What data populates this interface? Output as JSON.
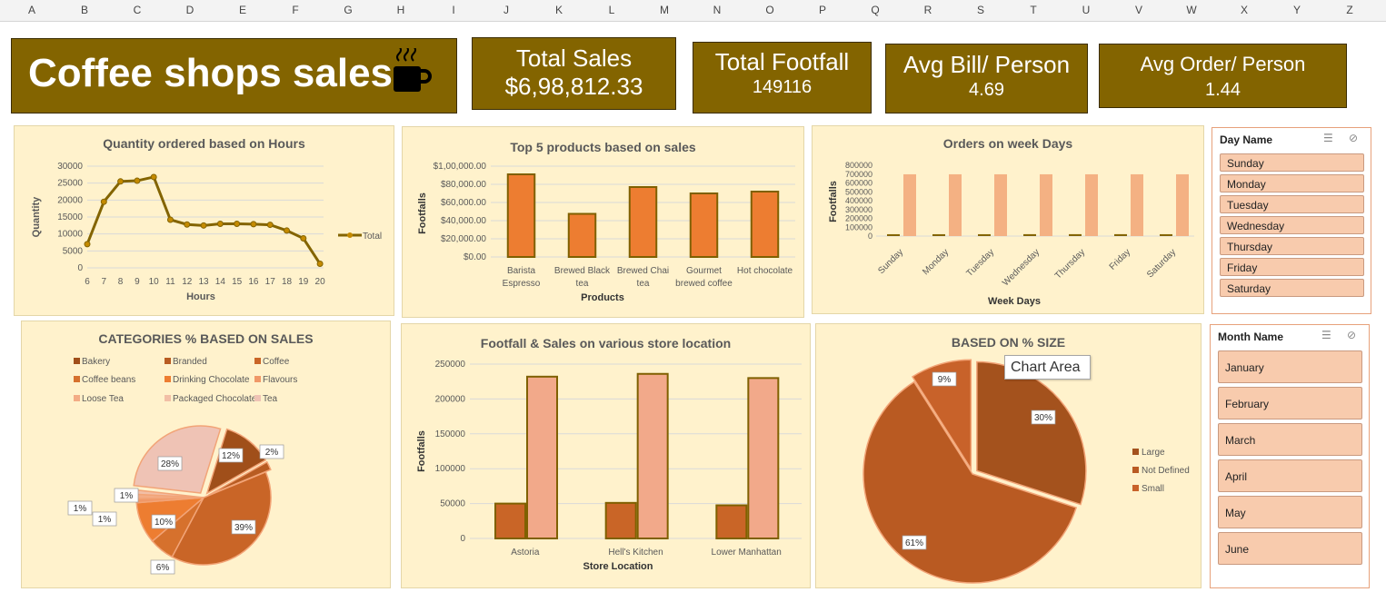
{
  "columns": [
    "A",
    "B",
    "C",
    "D",
    "E",
    "F",
    "G",
    "H",
    "I",
    "J",
    "K",
    "L",
    "M",
    "N",
    "O",
    "P",
    "Q",
    "R",
    "S",
    "T",
    "U",
    "V",
    "W",
    "X",
    "Y",
    "Z"
  ],
  "header": {
    "title": "Coffee shops sales",
    "icon": "coffee-cup-icon"
  },
  "kpis": [
    {
      "label": "Total Sales",
      "value": "$6,98,812.33"
    },
    {
      "label": "Total Footfall",
      "value": "149116"
    },
    {
      "label": "Avg Bill/ Person",
      "value": "4.69"
    },
    {
      "label": "Avg Order/ Person",
      "value": "1.44"
    }
  ],
  "tooltip": "Chart Area",
  "slicers": {
    "day": {
      "title": "Day Name",
      "items": [
        "Sunday",
        "Monday",
        "Tuesday",
        "Wednesday",
        "Thursday",
        "Friday",
        "Saturday"
      ]
    },
    "month": {
      "title": "Month Name",
      "items": [
        "January",
        "February",
        "March",
        "April",
        "May",
        "June"
      ]
    }
  },
  "chart_data": [
    {
      "type": "line",
      "title": "Quantity ordered based on Hours",
      "xlabel": "Hours",
      "ylabel": "Quantity",
      "x": [
        "6",
        "7",
        "8",
        "9",
        "10",
        "11",
        "12",
        "13",
        "14",
        "15",
        "16",
        "17",
        "18",
        "19",
        "20"
      ],
      "series": [
        {
          "name": "Total",
          "values": [
            7000,
            19500,
            25500,
            25700,
            26800,
            14200,
            12800,
            12500,
            13000,
            13000,
            12900,
            12700,
            11000,
            8700,
            1200
          ]
        }
      ],
      "yticks": [
        "0",
        "5000",
        "10000",
        "15000",
        "20000",
        "25000",
        "30000"
      ],
      "ylim": [
        0,
        30000
      ],
      "legend": "right",
      "color": "#836400"
    },
    {
      "type": "bar",
      "title": "Top 5 products based on sales",
      "xlabel": "Products",
      "ylabel": "Footfalls",
      "categories": [
        [
          "Barista",
          "Espresso"
        ],
        [
          "Brewed Black",
          "tea"
        ],
        [
          "Brewed Chai",
          "tea"
        ],
        [
          "Gourmet",
          "brewed coffee"
        ],
        [
          "Hot chocolate"
        ]
      ],
      "values": [
        91000,
        47500,
        77000,
        70000,
        72000
      ],
      "yticks": [
        "$0.00",
        "$20,000.00",
        "$40,000.00",
        "$60,000.00",
        "$80,000.00",
        "$1,00,000.00"
      ],
      "ylim": [
        0,
        100000
      ],
      "color": "#ed7d31"
    },
    {
      "type": "bar",
      "title": "Orders on week Days",
      "xlabel": "Week Days",
      "ylabel": "Footfalls",
      "categories": [
        "Sunday",
        "Monday",
        "Tuesday",
        "Wednesday",
        "Thursday",
        "Friday",
        "Saturday"
      ],
      "series": [
        {
          "values": [
            21000,
            21000,
            21000,
            21500,
            21500,
            21500,
            21000
          ],
          "color": "#836400"
        },
        {
          "values": [
            698000,
            698000,
            698000,
            698000,
            698000,
            698000,
            698000
          ],
          "color": "#f4b183"
        }
      ],
      "yticks": [
        "0",
        "100000",
        "200000",
        "300000",
        "400000",
        "500000",
        "600000",
        "700000",
        "800000"
      ],
      "ylim": [
        0,
        800000
      ]
    },
    {
      "type": "pie",
      "title": "CATEGORIES % BASED ON SALES",
      "legend": [
        "Bakery",
        "Branded",
        "Coffee",
        "Coffee beans",
        "Drinking Chocolate",
        "Flavours",
        "Loose Tea",
        "Packaged Chocolate",
        "Tea"
      ],
      "values": [
        12,
        2,
        39,
        6,
        10,
        1,
        1,
        1,
        28
      ],
      "labels": [
        "12%",
        "2%",
        "39%",
        "6%",
        "10%",
        "1%",
        "1%",
        "1%",
        "28%"
      ],
      "colors": [
        "#a04f1a",
        "#b85c22",
        "#c96527",
        "#d6712d",
        "#ed7d31",
        "#f09868",
        "#f3ac85",
        "#f2bfa6",
        "#efc3b5"
      ]
    },
    {
      "type": "bar",
      "title": "Footfall & Sales on various store location",
      "xlabel": "Store Location",
      "ylabel": "Footfalls",
      "categories": [
        "Astoria",
        "Hell's Kitchen",
        "Lower Manhattan"
      ],
      "series": [
        {
          "values": [
            50000,
            51000,
            47500
          ],
          "color": "#c96527"
        },
        {
          "values": [
            232000,
            236000,
            230000
          ],
          "color": "#f2a98a"
        }
      ],
      "yticks": [
        "0",
        "50000",
        "100000",
        "150000",
        "200000",
        "250000"
      ],
      "ylim": [
        0,
        250000
      ]
    },
    {
      "type": "pie",
      "title": "BASED ON % SIZE",
      "legend": [
        "Large",
        "Not Defined",
        "Small"
      ],
      "values": [
        30,
        61,
        9
      ],
      "labels": [
        "30%",
        "61%",
        "9%"
      ],
      "colors": [
        "#a4521d",
        "#b95a22",
        "#c8622a"
      ]
    }
  ]
}
